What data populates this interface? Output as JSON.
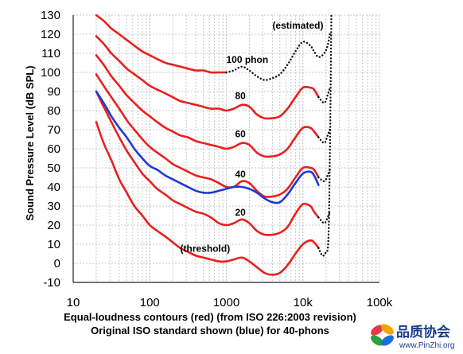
{
  "chart_data": {
    "type": "line",
    "title": "",
    "caption_line1": "Equal-loudness contours (red) (from ISO 226:2003 revision)",
    "caption_line2": "Original ISO standard shown (blue) for 40-phons",
    "ylabel": "Sound Pressure Level (dB SPL)",
    "xlabel": "",
    "x_scale": "log",
    "xlim": [
      10,
      100000
    ],
    "ylim": [
      -10,
      130
    ],
    "x_ticks": [
      10,
      100,
      1000,
      10000,
      100000
    ],
    "x_tick_labels": [
      "10",
      "100",
      "1000",
      "10k",
      "100k"
    ],
    "y_ticks": [
      -10,
      0,
      10,
      20,
      30,
      40,
      50,
      60,
      70,
      80,
      90,
      100,
      110,
      120,
      130
    ],
    "y_tick_labels": [
      "-10",
      "0",
      "10",
      "20",
      "30",
      "40",
      "50",
      "60",
      "70",
      "80",
      "90",
      "100",
      "110",
      "120",
      "130"
    ],
    "grid": "dotted",
    "colors": {
      "iso_2003": "#e8201e",
      "iso_original": "#1d3ad1",
      "estimated": "#111111",
      "grid": "#c8c8c8"
    },
    "series": [
      {
        "name": "(threshold)",
        "color": "#e8201e",
        "style": "solid",
        "points": [
          [
            20,
            74
          ],
          [
            25,
            63
          ],
          [
            31.5,
            54
          ],
          [
            40,
            44
          ],
          [
            50,
            37
          ],
          [
            63,
            30
          ],
          [
            80,
            25
          ],
          [
            100,
            20
          ],
          [
            125,
            17
          ],
          [
            160,
            14
          ],
          [
            200,
            11
          ],
          [
            250,
            8
          ],
          [
            315,
            6
          ],
          [
            400,
            4
          ],
          [
            500,
            3
          ],
          [
            630,
            2
          ],
          [
            800,
            1
          ],
          [
            1000,
            1
          ],
          [
            1250,
            2
          ],
          [
            1600,
            3
          ],
          [
            2000,
            1
          ],
          [
            2500,
            -2
          ],
          [
            3150,
            -5
          ],
          [
            4000,
            -6
          ],
          [
            5000,
            -5
          ],
          [
            6300,
            -1
          ],
          [
            8000,
            5
          ],
          [
            10000,
            10
          ],
          [
            12500,
            12
          ],
          [
            14000,
            11
          ],
          [
            16000,
            8
          ]
        ]
      },
      {
        "name": "(threshold) estimated",
        "color": "#111111",
        "style": "dotted",
        "points": [
          [
            16000,
            8
          ],
          [
            18000,
            4
          ],
          [
            20000,
            6
          ],
          [
            21500,
            12
          ],
          [
            22500,
            55
          ],
          [
            23500,
            131
          ]
        ]
      },
      {
        "name": "20",
        "color": "#e8201e",
        "style": "solid",
        "points": [
          [
            20,
            90
          ],
          [
            25,
            82
          ],
          [
            31.5,
            74
          ],
          [
            40,
            66
          ],
          [
            50,
            59
          ],
          [
            63,
            53
          ],
          [
            80,
            47
          ],
          [
            100,
            43
          ],
          [
            125,
            39
          ],
          [
            160,
            36
          ],
          [
            200,
            33
          ],
          [
            250,
            31
          ],
          [
            315,
            29
          ],
          [
            400,
            27
          ],
          [
            500,
            26
          ],
          [
            630,
            24
          ],
          [
            800,
            21
          ],
          [
            1000,
            20
          ],
          [
            1250,
            21
          ],
          [
            1600,
            23
          ],
          [
            2000,
            21
          ],
          [
            2500,
            17
          ],
          [
            3150,
            15
          ],
          [
            4000,
            15
          ],
          [
            5000,
            16
          ],
          [
            6300,
            19
          ],
          [
            8000,
            26
          ],
          [
            10000,
            31
          ],
          [
            12500,
            30
          ],
          [
            14000,
            27
          ],
          [
            16000,
            24
          ]
        ]
      },
      {
        "name": "20 estimated",
        "color": "#111111",
        "style": "dotted",
        "points": [
          [
            16000,
            24
          ],
          [
            19000,
            21
          ],
          [
            21000,
            24
          ],
          [
            22500,
            27
          ]
        ]
      },
      {
        "name": "40",
        "color": "#e8201e",
        "style": "solid",
        "points": [
          [
            20,
            99
          ],
          [
            25,
            93
          ],
          [
            31.5,
            87
          ],
          [
            40,
            81
          ],
          [
            50,
            75
          ],
          [
            63,
            70
          ],
          [
            80,
            65
          ],
          [
            100,
            61
          ],
          [
            125,
            58
          ],
          [
            160,
            55
          ],
          [
            200,
            52
          ],
          [
            250,
            50
          ],
          [
            315,
            48
          ],
          [
            400,
            46
          ],
          [
            500,
            45
          ],
          [
            630,
            44
          ],
          [
            800,
            42
          ],
          [
            1000,
            40
          ],
          [
            1250,
            40
          ],
          [
            1600,
            43
          ],
          [
            2000,
            42
          ],
          [
            2500,
            38
          ],
          [
            3150,
            35
          ],
          [
            4000,
            35
          ],
          [
            5000,
            36
          ],
          [
            6300,
            39
          ],
          [
            8000,
            45
          ],
          [
            10000,
            50
          ],
          [
            12500,
            50
          ],
          [
            14000,
            49
          ],
          [
            16000,
            45
          ]
        ]
      },
      {
        "name": "40 estimated",
        "color": "#111111",
        "style": "dotted",
        "points": [
          [
            16000,
            45
          ],
          [
            19000,
            43
          ],
          [
            21000,
            46
          ],
          [
            22500,
            49
          ]
        ]
      },
      {
        "name": "60",
        "color": "#e8201e",
        "style": "solid",
        "points": [
          [
            20,
            109
          ],
          [
            25,
            104
          ],
          [
            31.5,
            98
          ],
          [
            40,
            93
          ],
          [
            50,
            88
          ],
          [
            63,
            84
          ],
          [
            80,
            80
          ],
          [
            100,
            77
          ],
          [
            125,
            74
          ],
          [
            160,
            71
          ],
          [
            200,
            69
          ],
          [
            250,
            67
          ],
          [
            315,
            66
          ],
          [
            400,
            64
          ],
          [
            500,
            63
          ],
          [
            630,
            62
          ],
          [
            800,
            61
          ],
          [
            1000,
            60
          ],
          [
            1250,
            61
          ],
          [
            1600,
            63
          ],
          [
            2000,
            62
          ],
          [
            2500,
            58
          ],
          [
            3150,
            56
          ],
          [
            4000,
            56
          ],
          [
            5000,
            57
          ],
          [
            6300,
            60
          ],
          [
            8000,
            66
          ],
          [
            10000,
            71
          ],
          [
            12500,
            71
          ],
          [
            14000,
            69
          ],
          [
            16000,
            66
          ]
        ]
      },
      {
        "name": "60 estimated",
        "color": "#111111",
        "style": "dotted",
        "points": [
          [
            16000,
            66
          ],
          [
            19000,
            63
          ],
          [
            21000,
            67
          ],
          [
            22500,
            70
          ]
        ]
      },
      {
        "name": "80",
        "color": "#e8201e",
        "style": "solid",
        "points": [
          [
            20,
            119
          ],
          [
            25,
            115
          ],
          [
            31.5,
            110
          ],
          [
            40,
            106
          ],
          [
            50,
            102
          ],
          [
            63,
            99
          ],
          [
            80,
            96
          ],
          [
            100,
            93
          ],
          [
            125,
            91
          ],
          [
            160,
            89
          ],
          [
            200,
            87
          ],
          [
            250,
            85
          ],
          [
            315,
            84
          ],
          [
            400,
            83
          ],
          [
            500,
            82
          ],
          [
            630,
            81
          ],
          [
            800,
            81
          ],
          [
            1000,
            80
          ],
          [
            1250,
            81
          ],
          [
            1600,
            83
          ],
          [
            2000,
            82
          ],
          [
            2500,
            78
          ],
          [
            3150,
            76
          ],
          [
            4000,
            76
          ],
          [
            5000,
            77
          ],
          [
            6300,
            81
          ],
          [
            8000,
            87
          ],
          [
            10000,
            92
          ],
          [
            12500,
            92
          ],
          [
            14000,
            91
          ],
          [
            16000,
            87
          ]
        ]
      },
      {
        "name": "80 estimated",
        "color": "#111111",
        "style": "dotted",
        "points": [
          [
            16000,
            87
          ],
          [
            19000,
            84
          ],
          [
            21000,
            88
          ],
          [
            22500,
            92
          ]
        ]
      },
      {
        "name": "100 phon",
        "color": "#e8201e",
        "style": "solid",
        "points": [
          [
            20,
            130
          ],
          [
            25,
            127
          ],
          [
            31.5,
            123
          ],
          [
            40,
            120
          ],
          [
            50,
            117
          ],
          [
            63,
            114
          ],
          [
            80,
            111
          ],
          [
            100,
            109
          ],
          [
            125,
            107
          ],
          [
            160,
            105
          ],
          [
            200,
            104
          ],
          [
            250,
            103
          ],
          [
            315,
            102
          ],
          [
            400,
            101
          ],
          [
            500,
            101
          ],
          [
            630,
            100
          ],
          [
            800,
            100
          ],
          [
            1000,
            100
          ]
        ]
      },
      {
        "name": "100 phon estimated",
        "color": "#111111",
        "style": "dotted",
        "points": [
          [
            1000,
            100
          ],
          [
            1250,
            101
          ],
          [
            1600,
            103
          ],
          [
            2000,
            101
          ],
          [
            2500,
            98
          ],
          [
            3150,
            96
          ],
          [
            4000,
            97
          ],
          [
            5000,
            99
          ],
          [
            6300,
            104
          ],
          [
            8000,
            111
          ],
          [
            10000,
            116
          ],
          [
            12500,
            114
          ],
          [
            14000,
            111
          ],
          [
            16000,
            108
          ],
          [
            19000,
            110
          ],
          [
            21000,
            114
          ],
          [
            22500,
            120
          ]
        ]
      },
      {
        "name": "40-phon original ISO",
        "color": "#1d3ad1",
        "style": "solid",
        "points": [
          [
            20,
            90
          ],
          [
            25,
            84
          ],
          [
            31.5,
            77
          ],
          [
            40,
            71
          ],
          [
            50,
            66
          ],
          [
            63,
            60
          ],
          [
            80,
            55
          ],
          [
            100,
            51
          ],
          [
            125,
            49
          ],
          [
            160,
            46
          ],
          [
            200,
            44
          ],
          [
            250,
            42
          ],
          [
            315,
            40
          ],
          [
            400,
            38
          ],
          [
            500,
            37
          ],
          [
            630,
            37
          ],
          [
            800,
            38
          ],
          [
            1000,
            39
          ],
          [
            1250,
            40
          ],
          [
            1600,
            40
          ],
          [
            2000,
            39
          ],
          [
            2500,
            37
          ],
          [
            3150,
            34
          ],
          [
            4000,
            32
          ],
          [
            5000,
            32
          ],
          [
            6300,
            36
          ],
          [
            8000,
            42
          ],
          [
            10000,
            47
          ],
          [
            12500,
            48
          ],
          [
            14000,
            46
          ],
          [
            16000,
            41
          ]
        ]
      }
    ],
    "annotations": [
      {
        "text": "(estimated)",
        "x": 4000,
        "y": 123
      },
      {
        "text": "100 phon",
        "x": 1000,
        "y": 105
      },
      {
        "text": "80",
        "x": 1300,
        "y": 86
      },
      {
        "text": "60",
        "x": 1300,
        "y": 66
      },
      {
        "text": "40",
        "x": 1300,
        "y": 45
      },
      {
        "text": "20",
        "x": 1300,
        "y": 25
      },
      {
        "text": "(threshold)",
        "x": 250,
        "y": 6
      }
    ]
  },
  "logo": {
    "name_cn": "品质协会",
    "url": "www.PinZhi.org",
    "colors": [
      "#e63946",
      "#f4a300",
      "#2e9e44",
      "#1a6ed8"
    ]
  }
}
